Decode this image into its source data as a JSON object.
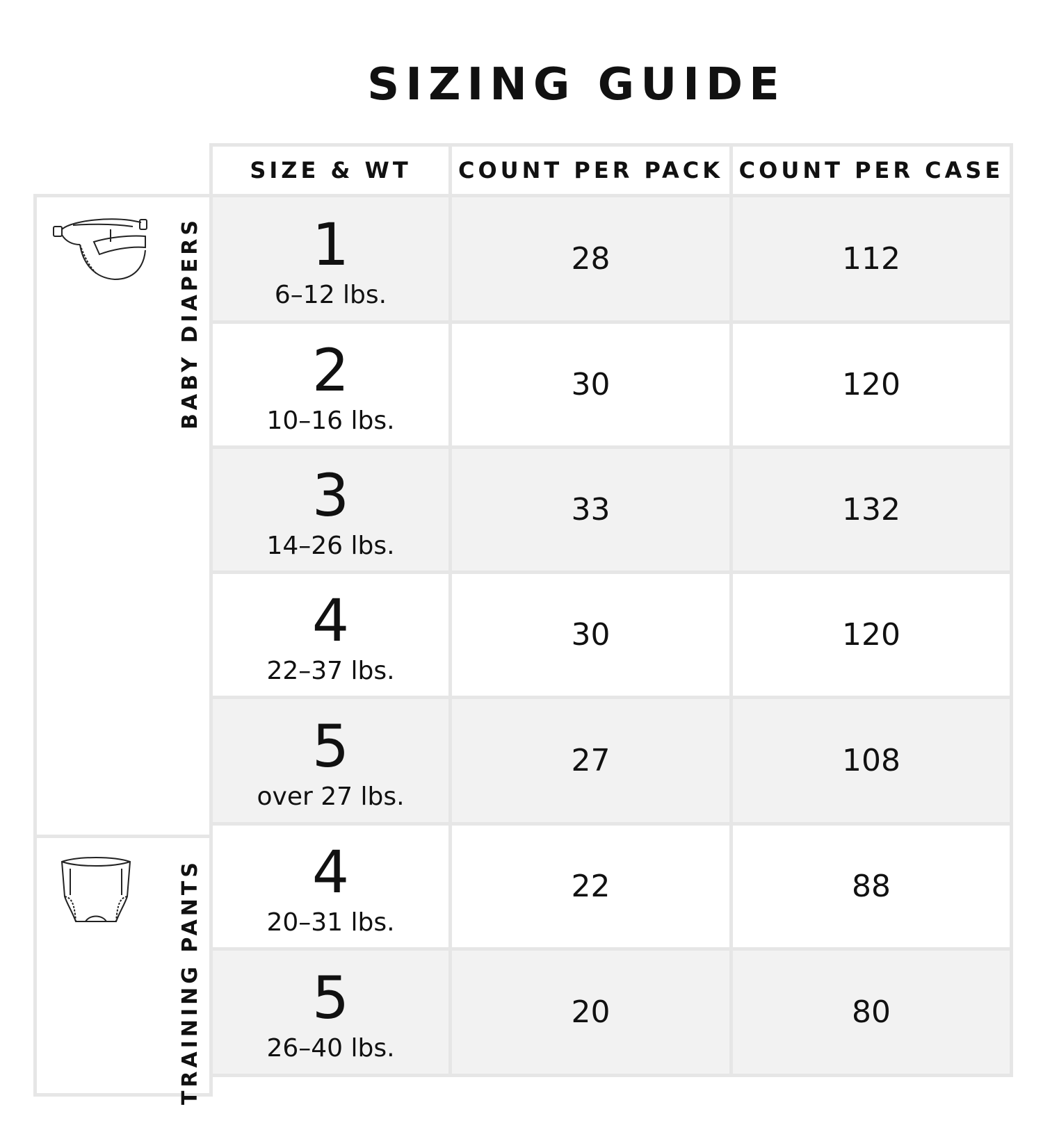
{
  "title": "SIZING GUIDE",
  "headers": [
    "SIZE & WT",
    "COUNT PER PACK",
    "COUNT PER CASE"
  ],
  "groups": [
    {
      "label": "BABY DIAPERS",
      "icon": "diaper-icon",
      "rows": [
        {
          "size": "1",
          "weight": "6–12 lbs.",
          "pack": "28",
          "case": "112"
        },
        {
          "size": "2",
          "weight": "10–16 lbs.",
          "pack": "30",
          "case": "120"
        },
        {
          "size": "3",
          "weight": "14–26 lbs.",
          "pack": "33",
          "case": "132"
        },
        {
          "size": "4",
          "weight": "22–37 lbs.",
          "pack": "30",
          "case": "120"
        },
        {
          "size": "5",
          "weight": "over 27 lbs.",
          "pack": "27",
          "case": "108"
        }
      ]
    },
    {
      "label": "TRAINING PANTS",
      "icon": "training-pants-icon",
      "rows": [
        {
          "size": "4",
          "weight": "20–31 lbs.",
          "pack": "22",
          "case": "88"
        },
        {
          "size": "5",
          "weight": "26–40 lbs.",
          "pack": "20",
          "case": "80"
        }
      ]
    }
  ],
  "colors": {
    "border": "#e6e6e6",
    "shade": "#f2f2f2",
    "text": "#111111"
  }
}
